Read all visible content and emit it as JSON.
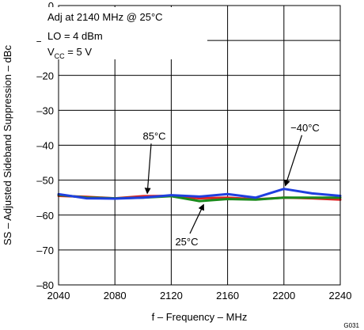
{
  "chart_data": {
    "type": "line",
    "xlabel": "f – Frequency – MHz",
    "ylabel": "SS – Adjusted Sideband Suppression – dBc",
    "xlim": [
      2040,
      2240
    ],
    "ylim": [
      -80,
      0
    ],
    "x_ticks": [
      "2040",
      "2080",
      "2120",
      "2160",
      "2200",
      "2240"
    ],
    "y_ticks": [
      "0",
      "–10",
      "–20",
      "–30",
      "–40",
      "–50",
      "–60",
      "–70",
      "–80"
    ],
    "grid": true,
    "conditions": {
      "line1": "Adj at 2140 MHz @ 25°C",
      "line2": "LO = 4 dBm",
      "line3_prefix": "V",
      "line3_sub": "CC",
      "line3_suffix": " =  5 V"
    },
    "figure_id": "G031",
    "series": [
      {
        "name": "85°C",
        "color": "#e02020",
        "x": [
          2040,
          2060,
          2080,
          2100,
          2120,
          2140,
          2160,
          2180,
          2200,
          2220,
          2240
        ],
        "y": [
          -54.5,
          -54.8,
          -55.2,
          -54.6,
          -54.5,
          -55.2,
          -55.0,
          -55.5,
          -55.0,
          -55.2,
          -55.6
        ]
      },
      {
        "name": "25°C",
        "color": "#1a8a1a",
        "x": [
          2040,
          2060,
          2080,
          2100,
          2120,
          2140,
          2160,
          2180,
          2200,
          2220,
          2240
        ],
        "y": [
          -54.2,
          -55.0,
          -55.2,
          -55.0,
          -54.6,
          -56.0,
          -55.4,
          -55.6,
          -55.0,
          -55.0,
          -55.0
        ]
      },
      {
        "name": "−40°C",
        "color": "#1f3fdf",
        "x": [
          2040,
          2060,
          2080,
          2100,
          2120,
          2140,
          2160,
          2180,
          2200,
          2220,
          2240
        ],
        "y": [
          -54.0,
          -55.2,
          -55.3,
          -55.0,
          -54.3,
          -54.7,
          -54.0,
          -55.0,
          -52.5,
          -53.8,
          -54.5
        ]
      }
    ],
    "annotations": [
      {
        "series": "85°C",
        "text": "85°C"
      },
      {
        "series": "25°C",
        "text": "25°C"
      },
      {
        "series": "−40°C",
        "text": "−40°C"
      }
    ]
  }
}
